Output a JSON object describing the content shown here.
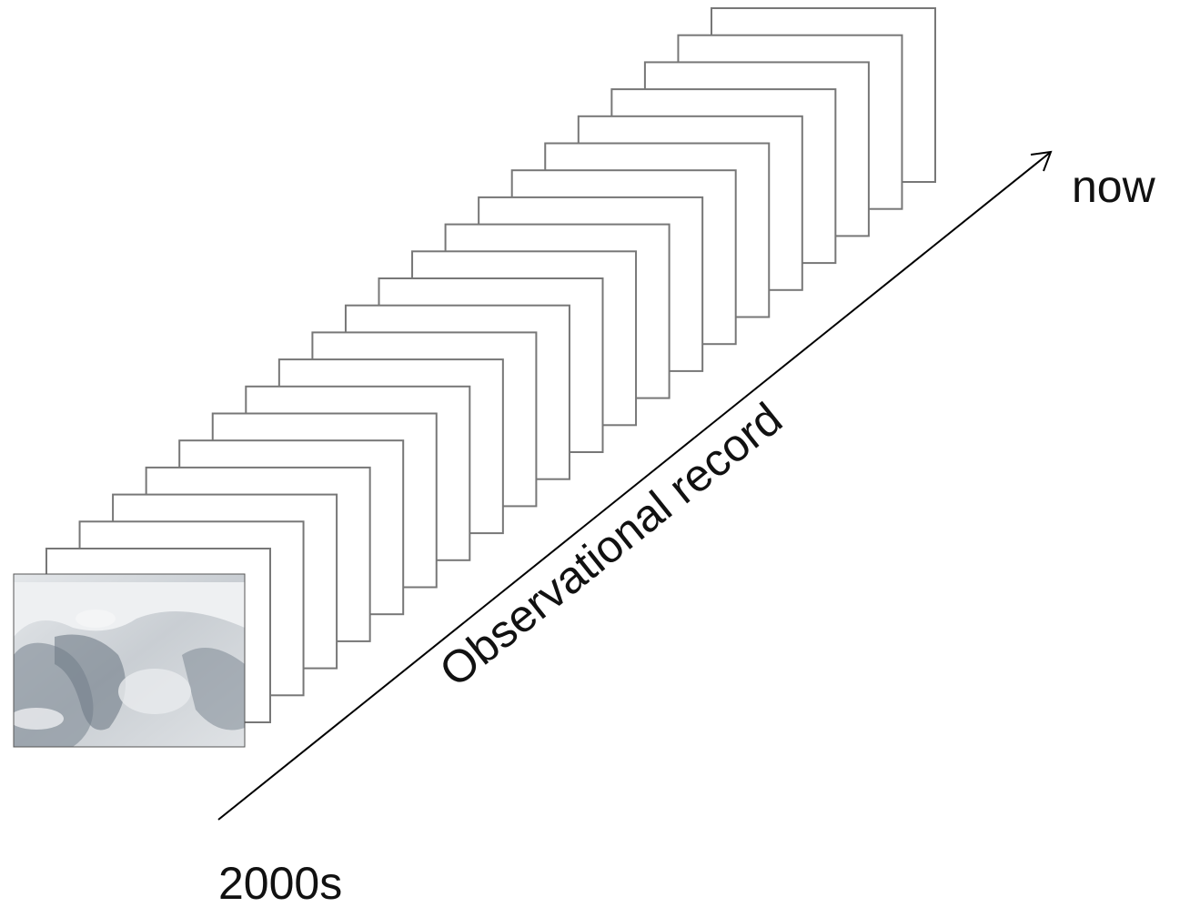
{
  "labels": {
    "end": "now",
    "axis": "Observational record",
    "start": "2000s"
  }
}
